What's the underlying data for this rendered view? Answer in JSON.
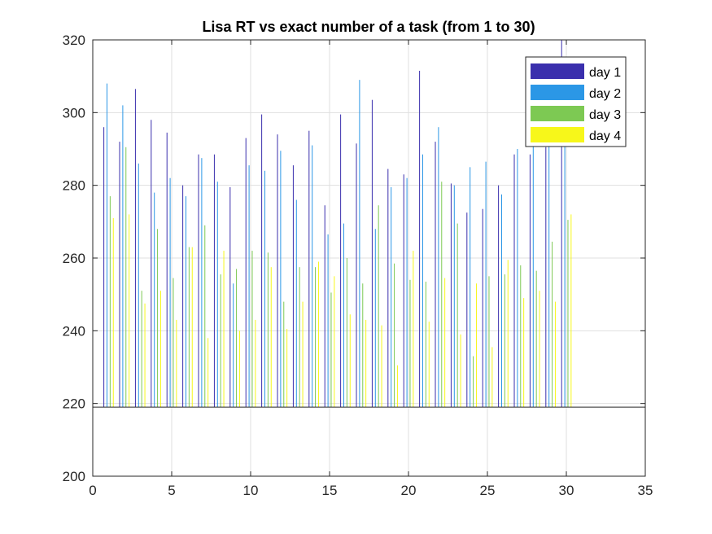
{
  "chart_data": {
    "type": "bar",
    "title": "Lisa RT vs exact number of a task (from 1 to 30)",
    "xlabel": "",
    "ylabel": "",
    "xlim": [
      0,
      35
    ],
    "ylim": [
      200,
      320
    ],
    "bar_baseline": 219,
    "xticks": [
      0,
      5,
      10,
      15,
      20,
      25,
      30,
      35
    ],
    "yticks": [
      200,
      220,
      240,
      260,
      280,
      300,
      320
    ],
    "grid": true,
    "legend_position": "top-right",
    "x": [
      1,
      2,
      3,
      4,
      5,
      6,
      7,
      8,
      9,
      10,
      11,
      12,
      13,
      14,
      15,
      16,
      17,
      18,
      19,
      20,
      21,
      22,
      23,
      24,
      25,
      26,
      27,
      28,
      29,
      30
    ],
    "series": [
      {
        "name": "day 1",
        "color": "#3a2fad",
        "values": [
          296,
          292,
          306.5,
          298,
          294.5,
          280,
          288.5,
          288.5,
          279.5,
          293,
          299.5,
          294,
          285.5,
          295,
          274.5,
          299.5,
          291.5,
          303.5,
          284.5,
          283,
          311.5,
          292,
          280.5,
          272.5,
          273.5,
          280,
          288.5,
          288.5,
          290.5,
          320
        ]
      },
      {
        "name": "day 2",
        "color": "#2b97e6",
        "values": [
          308,
          302,
          286,
          278,
          282,
          277,
          287.5,
          281,
          253,
          285.5,
          284,
          289.5,
          276,
          291,
          266.5,
          269.5,
          309,
          268,
          279.5,
          282,
          288.5,
          296,
          280,
          285,
          286.5,
          277.5,
          290,
          291,
          293,
          291
        ]
      },
      {
        "name": "day 3",
        "color": "#7dc953",
        "values": [
          277,
          290.5,
          251,
          268,
          254.5,
          263,
          269,
          255.5,
          257,
          262,
          261.5,
          248,
          257.5,
          257.5,
          250.5,
          260,
          253,
          274.5,
          258.5,
          254,
          253.5,
          281,
          269.5,
          233,
          255,
          255.5,
          258,
          256.5,
          264.5,
          270.5
        ]
      },
      {
        "name": "day 4",
        "color": "#f7f71a",
        "values": [
          271,
          272,
          247.5,
          251,
          243,
          263,
          238,
          262,
          240,
          243,
          257.5,
          240.5,
          248,
          259,
          255,
          244.5,
          243,
          241.5,
          230.5,
          262,
          242.5,
          254.5,
          239,
          253,
          235.5,
          259.5,
          249,
          251,
          248,
          272
        ]
      }
    ]
  }
}
